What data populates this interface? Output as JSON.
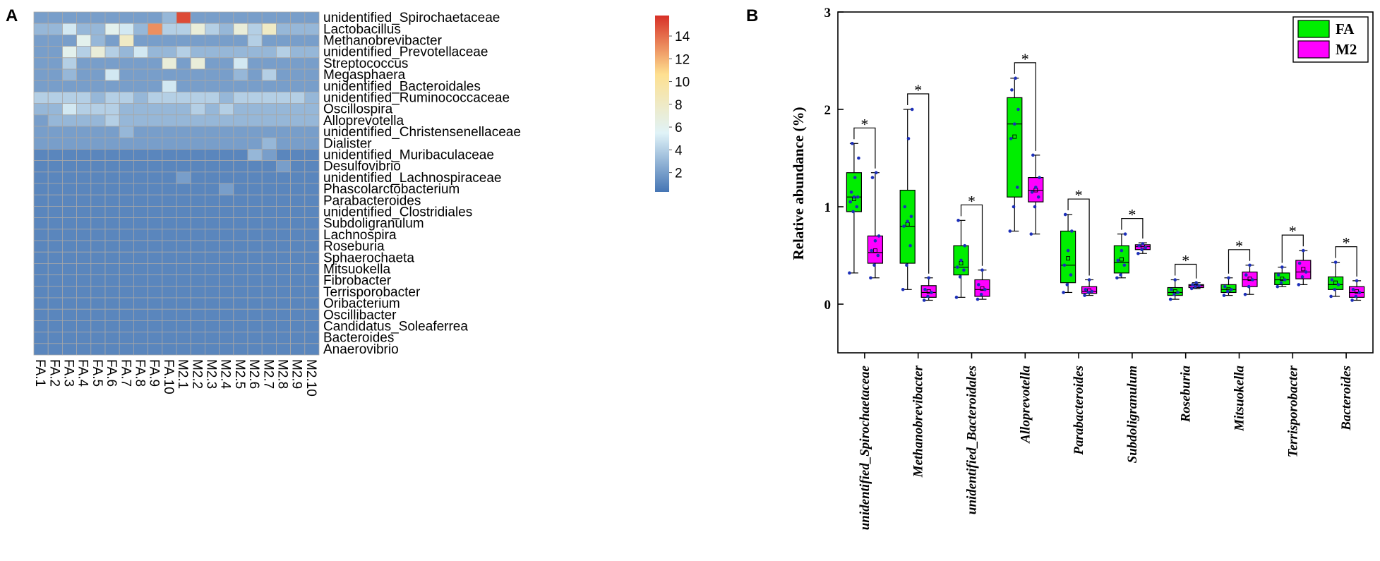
{
  "chart_data": [
    {
      "type": "heatmap",
      "panel_label": "A",
      "title": "",
      "columns": [
        "FA.1",
        "FA.2",
        "FA.3",
        "FA.4",
        "FA.5",
        "FA.6",
        "FA.7",
        "FA.8",
        "FA.9",
        "FA.10",
        "M2.1",
        "M2.2",
        "M2.3",
        "M2.4",
        "M2.5",
        "M2.6",
        "M2.7",
        "M2.8",
        "M2.9",
        "M2.10"
      ],
      "rows": [
        "unidentified_Spirochaetaceae",
        "Lactobacillus",
        "Methanobrevibacter",
        "unidentified_Prevotellaceae",
        "Streptococcus",
        "Megasphaera",
        "unidentified_Bacteroidales",
        "unidentified_Ruminococcaceae",
        "Oscillospira",
        "Alloprevotella",
        "unidentified_Christensenellaceae",
        "Dialister",
        "unidentified_Muribaculaceae",
        "Desulfovibrio",
        "unidentified_Lachnospiraceae",
        "Phascolarctobacterium",
        "Parabacteroides",
        "unidentified_Clostridiales",
        "Subdoligranulum",
        "Lachnospira",
        "Roseburia",
        "Sphaerochaeta",
        "Mitsuokella",
        "Fibrobacter",
        "Terrisporobacter",
        "Oribacterium",
        "Oscillibacter",
        "Candidatus_Soleaferrea",
        "Bacteroides",
        "Anaerovibrio"
      ],
      "values": [
        [
          2,
          2,
          2,
          2,
          2,
          2,
          2,
          2,
          2,
          3,
          15,
          2,
          2,
          2,
          2,
          2,
          2,
          2,
          2,
          2
        ],
        [
          3,
          3,
          5,
          3,
          3,
          6,
          5,
          3,
          13,
          4,
          4,
          7,
          4,
          3,
          7,
          4,
          8,
          3,
          3,
          3
        ],
        [
          2,
          2,
          2,
          6,
          3,
          2,
          8,
          2,
          2,
          2,
          2,
          2,
          2,
          2,
          2,
          4,
          2,
          2,
          2,
          2
        ],
        [
          2,
          2,
          6,
          4,
          7,
          4,
          3,
          5,
          3,
          3,
          4,
          3,
          3,
          3,
          3,
          3,
          3,
          4,
          3,
          3
        ],
        [
          2,
          2,
          4,
          2,
          2,
          2,
          2,
          2,
          2,
          7,
          2,
          7,
          2,
          2,
          5,
          2,
          2,
          2,
          2,
          2
        ],
        [
          2,
          2,
          3,
          2,
          2,
          5,
          2,
          2,
          2,
          2,
          2,
          2,
          2,
          2,
          3,
          2,
          4,
          2,
          2,
          2
        ],
        [
          2,
          2,
          2,
          2,
          2,
          2,
          2,
          2,
          2,
          5,
          2,
          2,
          2,
          2,
          2,
          2,
          2,
          2,
          2,
          2
        ],
        [
          4,
          4,
          4,
          4,
          3,
          4,
          4,
          3,
          4,
          4,
          4,
          4,
          4,
          3,
          4,
          4,
          4,
          4,
          4,
          3
        ],
        [
          3,
          3,
          5,
          4,
          4,
          4,
          3,
          3,
          3,
          3,
          3,
          4,
          3,
          4,
          3,
          3,
          3,
          3,
          3,
          3
        ],
        [
          2,
          3,
          3,
          3,
          3,
          4,
          3,
          3,
          3,
          3,
          3,
          3,
          3,
          3,
          3,
          3,
          3,
          3,
          3,
          3
        ],
        [
          2,
          2,
          2,
          2,
          2,
          2,
          3,
          2,
          2,
          2,
          2,
          2,
          2,
          2,
          2,
          2,
          2,
          2,
          2,
          2
        ],
        [
          2,
          2,
          2,
          2,
          2,
          2,
          2,
          2,
          2,
          2,
          2,
          2,
          2,
          2,
          2,
          2,
          3,
          2,
          2,
          2
        ],
        [
          1,
          1,
          1,
          1,
          1,
          1,
          1,
          1,
          1,
          1,
          1,
          1,
          1,
          1,
          1,
          3,
          2,
          1,
          1,
          1
        ],
        [
          1,
          1,
          1,
          1,
          1,
          1,
          1,
          1,
          1,
          1,
          1,
          1,
          1,
          1,
          1,
          1,
          1,
          2,
          1,
          1
        ],
        [
          1,
          1,
          1,
          1,
          1,
          1,
          1,
          1,
          1,
          1,
          2,
          1,
          1,
          1,
          1,
          1,
          1,
          1,
          1,
          1
        ],
        [
          1,
          1,
          1,
          1,
          1,
          1,
          1,
          1,
          1,
          1,
          1,
          1,
          1,
          2,
          1,
          1,
          1,
          1,
          1,
          1
        ],
        [
          1,
          1,
          1,
          1,
          1,
          1,
          1,
          1,
          1,
          1,
          1,
          1,
          1,
          1,
          1,
          1,
          1,
          1,
          1,
          1
        ],
        [
          1,
          1,
          1,
          1,
          1,
          1,
          1,
          1,
          1,
          1,
          1,
          1,
          1,
          1,
          1,
          1,
          1,
          1,
          1,
          1
        ],
        [
          1,
          1,
          1,
          1,
          1,
          1,
          1,
          1,
          1,
          1,
          1,
          1,
          1,
          1,
          1,
          1,
          1,
          1,
          1,
          1
        ],
        [
          1,
          1,
          1,
          1,
          1,
          1,
          1,
          1,
          1,
          1,
          1,
          1,
          1,
          1,
          1,
          1,
          1,
          1,
          1,
          1
        ],
        [
          1,
          1,
          1,
          1,
          1,
          1,
          1,
          1,
          1,
          1,
          1,
          1,
          1,
          1,
          1,
          1,
          1,
          1,
          1,
          1
        ],
        [
          1,
          1,
          1,
          1,
          1,
          1,
          1,
          1,
          1,
          1,
          1,
          1,
          1,
          1,
          1,
          1,
          1,
          1,
          1,
          1
        ],
        [
          1,
          1,
          1,
          1,
          1,
          1,
          1,
          1,
          1,
          1,
          1,
          1,
          1,
          1,
          1,
          1,
          1,
          1,
          1,
          1
        ],
        [
          1,
          1,
          1,
          1,
          1,
          1,
          1,
          1,
          1,
          1,
          1,
          1,
          1,
          1,
          1,
          1,
          1,
          1,
          1,
          1
        ],
        [
          1,
          1,
          1,
          1,
          1,
          1,
          1,
          1,
          1,
          1,
          1,
          1,
          1,
          1,
          1,
          1,
          1,
          1,
          1,
          1
        ],
        [
          1,
          1,
          1,
          1,
          1,
          1,
          1,
          1,
          1,
          1,
          1,
          1,
          1,
          1,
          1,
          1,
          1,
          1,
          1,
          1
        ],
        [
          1,
          1,
          1,
          1,
          1,
          1,
          1,
          1,
          1,
          1,
          1,
          1,
          1,
          1,
          1,
          1,
          1,
          1,
          1,
          1
        ],
        [
          1,
          1,
          1,
          1,
          1,
          1,
          1,
          1,
          1,
          1,
          1,
          1,
          1,
          1,
          1,
          1,
          1,
          1,
          1,
          1
        ],
        [
          1,
          1,
          1,
          1,
          1,
          1,
          1,
          1,
          1,
          1,
          1,
          1,
          1,
          1,
          1,
          1,
          1,
          1,
          1,
          1
        ],
        [
          1,
          1,
          1,
          1,
          1,
          1,
          1,
          1,
          1,
          1,
          1,
          1,
          1,
          1,
          1,
          1,
          1,
          1,
          1,
          1
        ]
      ],
      "colorbar": {
        "min": 0.3,
        "max": 15.8,
        "ticks": [
          2,
          4,
          6,
          8,
          10,
          12,
          14
        ],
        "colors": [
          "#4575b4",
          "#e0f3f8",
          "#fee090",
          "#d73027"
        ]
      }
    },
    {
      "type": "box",
      "panel_label": "B",
      "title": "",
      "ylabel": "Relative abundance (%)",
      "xlabel": "",
      "ylim": [
        -0.5,
        3
      ],
      "yticks": [
        0,
        1,
        2,
        3
      ],
      "categories": [
        "unidentified_Spirochaetaceae",
        "Methanobrevibacter",
        "unidentified_Bacteroidales",
        "Alloprevotella",
        "Parabacteroides",
        "Subdoligranulum",
        "Roseburia",
        "Mitsuokella",
        "Terrisporobacter",
        "Bacteroides"
      ],
      "significance": [
        "*",
        "*",
        "*",
        "*",
        "*",
        "*",
        "*",
        "*",
        "*",
        "*"
      ],
      "legend": {
        "position": "top-right",
        "entries": [
          {
            "name": "FA",
            "color": "#00ee00"
          },
          {
            "name": "M2",
            "color": "#ff00ff"
          }
        ]
      },
      "series": [
        {
          "name": "FA",
          "color": "#00ee00",
          "boxes": [
            {
              "min": 0.32,
              "q1": 0.95,
              "median": 1.1,
              "mean": 1.08,
              "q3": 1.35,
              "max": 1.65,
              "points": [
                0.32,
                0.95,
                1.0,
                1.05,
                1.1,
                1.1,
                1.15,
                1.3,
                1.5,
                1.65
              ]
            },
            {
              "min": 0.15,
              "q1": 0.42,
              "median": 0.8,
              "mean": 0.82,
              "q3": 1.17,
              "max": 2.0,
              "points": [
                0.15,
                0.4,
                0.6,
                0.8,
                0.85,
                0.9,
                1.0,
                1.7,
                2.0
              ]
            },
            {
              "min": 0.07,
              "q1": 0.3,
              "median": 0.38,
              "mean": 0.42,
              "q3": 0.6,
              "max": 0.86,
              "points": [
                0.07,
                0.28,
                0.35,
                0.38,
                0.45,
                0.6,
                0.86
              ]
            },
            {
              "min": 0.75,
              "q1": 1.1,
              "median": 1.85,
              "mean": 1.72,
              "q3": 2.12,
              "max": 2.32,
              "points": [
                0.75,
                1.0,
                1.2,
                1.7,
                1.85,
                2.0,
                2.2,
                2.32
              ]
            },
            {
              "min": 0.12,
              "q1": 0.22,
              "median": 0.4,
              "mean": 0.47,
              "q3": 0.75,
              "max": 0.92,
              "points": [
                0.12,
                0.2,
                0.3,
                0.4,
                0.55,
                0.75,
                0.92
              ]
            },
            {
              "min": 0.27,
              "q1": 0.32,
              "median": 0.43,
              "mean": 0.46,
              "q3": 0.6,
              "max": 0.72,
              "points": [
                0.27,
                0.3,
                0.4,
                0.45,
                0.55,
                0.72
              ]
            },
            {
              "min": 0.05,
              "q1": 0.09,
              "median": 0.12,
              "mean": 0.13,
              "q3": 0.17,
              "max": 0.25,
              "points": [
                0.05,
                0.1,
                0.12,
                0.15,
                0.25
              ]
            },
            {
              "min": 0.09,
              "q1": 0.12,
              "median": 0.15,
              "mean": 0.15,
              "q3": 0.2,
              "max": 0.27,
              "points": [
                0.09,
                0.13,
                0.15,
                0.18,
                0.27
              ]
            },
            {
              "min": 0.18,
              "q1": 0.2,
              "median": 0.25,
              "mean": 0.26,
              "q3": 0.32,
              "max": 0.38,
              "points": [
                0.18,
                0.22,
                0.25,
                0.3,
                0.38
              ]
            },
            {
              "min": 0.08,
              "q1": 0.15,
              "median": 0.2,
              "mean": 0.22,
              "q3": 0.28,
              "max": 0.43,
              "points": [
                0.08,
                0.15,
                0.2,
                0.25,
                0.43
              ]
            }
          ]
        },
        {
          "name": "M2",
          "color": "#ff00ff",
          "boxes": [
            {
              "min": 0.27,
              "q1": 0.42,
              "median": 0.53,
              "mean": 0.55,
              "q3": 0.7,
              "max": 1.35,
              "points": [
                0.27,
                0.4,
                0.5,
                0.55,
                0.65,
                0.7,
                1.3,
                1.35
              ]
            },
            {
              "min": 0.04,
              "q1": 0.07,
              "median": 0.12,
              "mean": 0.13,
              "q3": 0.19,
              "max": 0.27,
              "points": [
                0.04,
                0.08,
                0.12,
                0.15,
                0.27
              ]
            },
            {
              "min": 0.05,
              "q1": 0.08,
              "median": 0.15,
              "mean": 0.16,
              "q3": 0.25,
              "max": 0.35,
              "points": [
                0.05,
                0.1,
                0.15,
                0.2,
                0.35
              ]
            },
            {
              "min": 0.72,
              "q1": 1.05,
              "median": 1.17,
              "mean": 1.17,
              "q3": 1.3,
              "max": 1.53,
              "points": [
                0.72,
                1.0,
                1.1,
                1.15,
                1.2,
                1.3,
                1.53
              ]
            },
            {
              "min": 0.09,
              "q1": 0.11,
              "median": 0.13,
              "mean": 0.14,
              "q3": 0.18,
              "max": 0.25,
              "points": [
                0.09,
                0.12,
                0.13,
                0.15,
                0.25
              ]
            },
            {
              "min": 0.52,
              "q1": 0.56,
              "median": 0.59,
              "mean": 0.59,
              "q3": 0.61,
              "max": 0.63,
              "points": [
                0.52,
                0.56,
                0.58,
                0.6,
                0.62
              ]
            },
            {
              "min": 0.16,
              "q1": 0.17,
              "median": 0.19,
              "mean": 0.19,
              "q3": 0.2,
              "max": 0.22,
              "points": [
                0.16,
                0.18,
                0.19,
                0.2,
                0.22
              ]
            },
            {
              "min": 0.1,
              "q1": 0.18,
              "median": 0.25,
              "mean": 0.26,
              "q3": 0.33,
              "max": 0.4,
              "points": [
                0.1,
                0.18,
                0.25,
                0.3,
                0.4
              ]
            },
            {
              "min": 0.2,
              "q1": 0.26,
              "median": 0.33,
              "mean": 0.36,
              "q3": 0.45,
              "max": 0.55,
              "points": [
                0.2,
                0.28,
                0.33,
                0.42,
                0.55
              ]
            },
            {
              "min": 0.04,
              "q1": 0.07,
              "median": 0.12,
              "mean": 0.13,
              "q3": 0.18,
              "max": 0.24,
              "points": [
                0.04,
                0.08,
                0.12,
                0.15,
                0.24
              ]
            }
          ]
        }
      ]
    }
  ]
}
